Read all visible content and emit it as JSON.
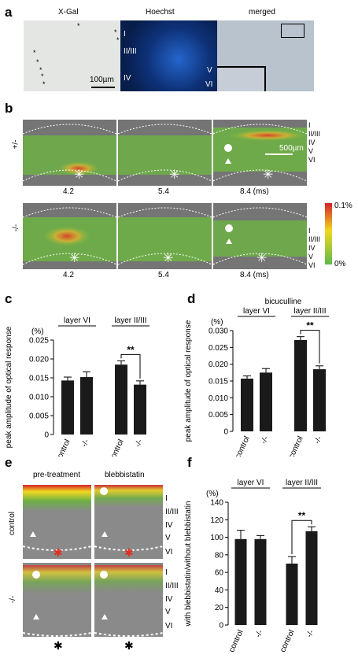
{
  "panels": {
    "a": {
      "label": "a",
      "titles": [
        "X-Gal",
        "Hoechst",
        "merged"
      ],
      "scale": "100µm",
      "layers": [
        "I",
        "II/III",
        "IV",
        "V",
        "VI"
      ]
    },
    "b": {
      "label": "b",
      "genotypes": [
        "+/-",
        "-/-"
      ],
      "times": [
        "4.2",
        "5.4",
        "8.4 (ms)"
      ],
      "scale": "500µm",
      "layers": [
        "I",
        "II/III",
        "IV",
        "V",
        "VI"
      ],
      "colorbar_max": "0.1%",
      "colorbar_min": "0%"
    },
    "e": {
      "label": "e",
      "titles": [
        "pre-treatment",
        "blebbistatin"
      ],
      "rows": [
        "control",
        "-/-"
      ],
      "layers": [
        "I",
        "II/III",
        "IV",
        "V",
        "VI"
      ]
    }
  },
  "chart_data": [
    {
      "panel": "c",
      "type": "bar",
      "title": "",
      "ylabel": "peak amplitude of optical response",
      "unit": "(%)",
      "ylim": [
        0,
        0.025
      ],
      "yticks": [
        "0.025",
        "0.020",
        "0.015",
        "0.010",
        "0.005",
        "0"
      ],
      "groups": [
        "layer VI",
        "layer II/III"
      ],
      "categories": [
        "control",
        "-/-",
        "control",
        "-/-"
      ],
      "values": [
        0.0143,
        0.0152,
        0.0185,
        0.0132
      ],
      "errors": [
        0.0009,
        0.0014,
        0.001,
        0.001
      ],
      "significance": "**"
    },
    {
      "panel": "d",
      "type": "bar",
      "title": "bicuculline",
      "ylabel": "peak amplitude of optical response",
      "unit": "(%)",
      "ylim": [
        0,
        0.03
      ],
      "yticks": [
        "0.030",
        "0.025",
        "0.020",
        "0.015",
        "0.010",
        "0.005",
        "0"
      ],
      "groups": [
        "layer VI",
        "layer II/III"
      ],
      "categories": [
        "control",
        "-/-",
        "control",
        "-/-"
      ],
      "values": [
        0.0157,
        0.0175,
        0.0272,
        0.0185
      ],
      "errors": [
        0.0008,
        0.0012,
        0.001,
        0.001
      ],
      "significance": "**"
    },
    {
      "panel": "f",
      "type": "bar",
      "title": "",
      "ylabel": "with blebbistatin/without blebbistatin",
      "unit": "(%)",
      "ylim": [
        0,
        140
      ],
      "yticks": [
        "140",
        "120",
        "100",
        "80",
        "60",
        "40",
        "20",
        "0"
      ],
      "groups": [
        "layer VI",
        "layer II/III"
      ],
      "categories": [
        "control",
        "-/-",
        "control",
        "-/-"
      ],
      "values": [
        98,
        98,
        70,
        107
      ],
      "errors": [
        10,
        4,
        8,
        5
      ],
      "significance": "**"
    }
  ]
}
